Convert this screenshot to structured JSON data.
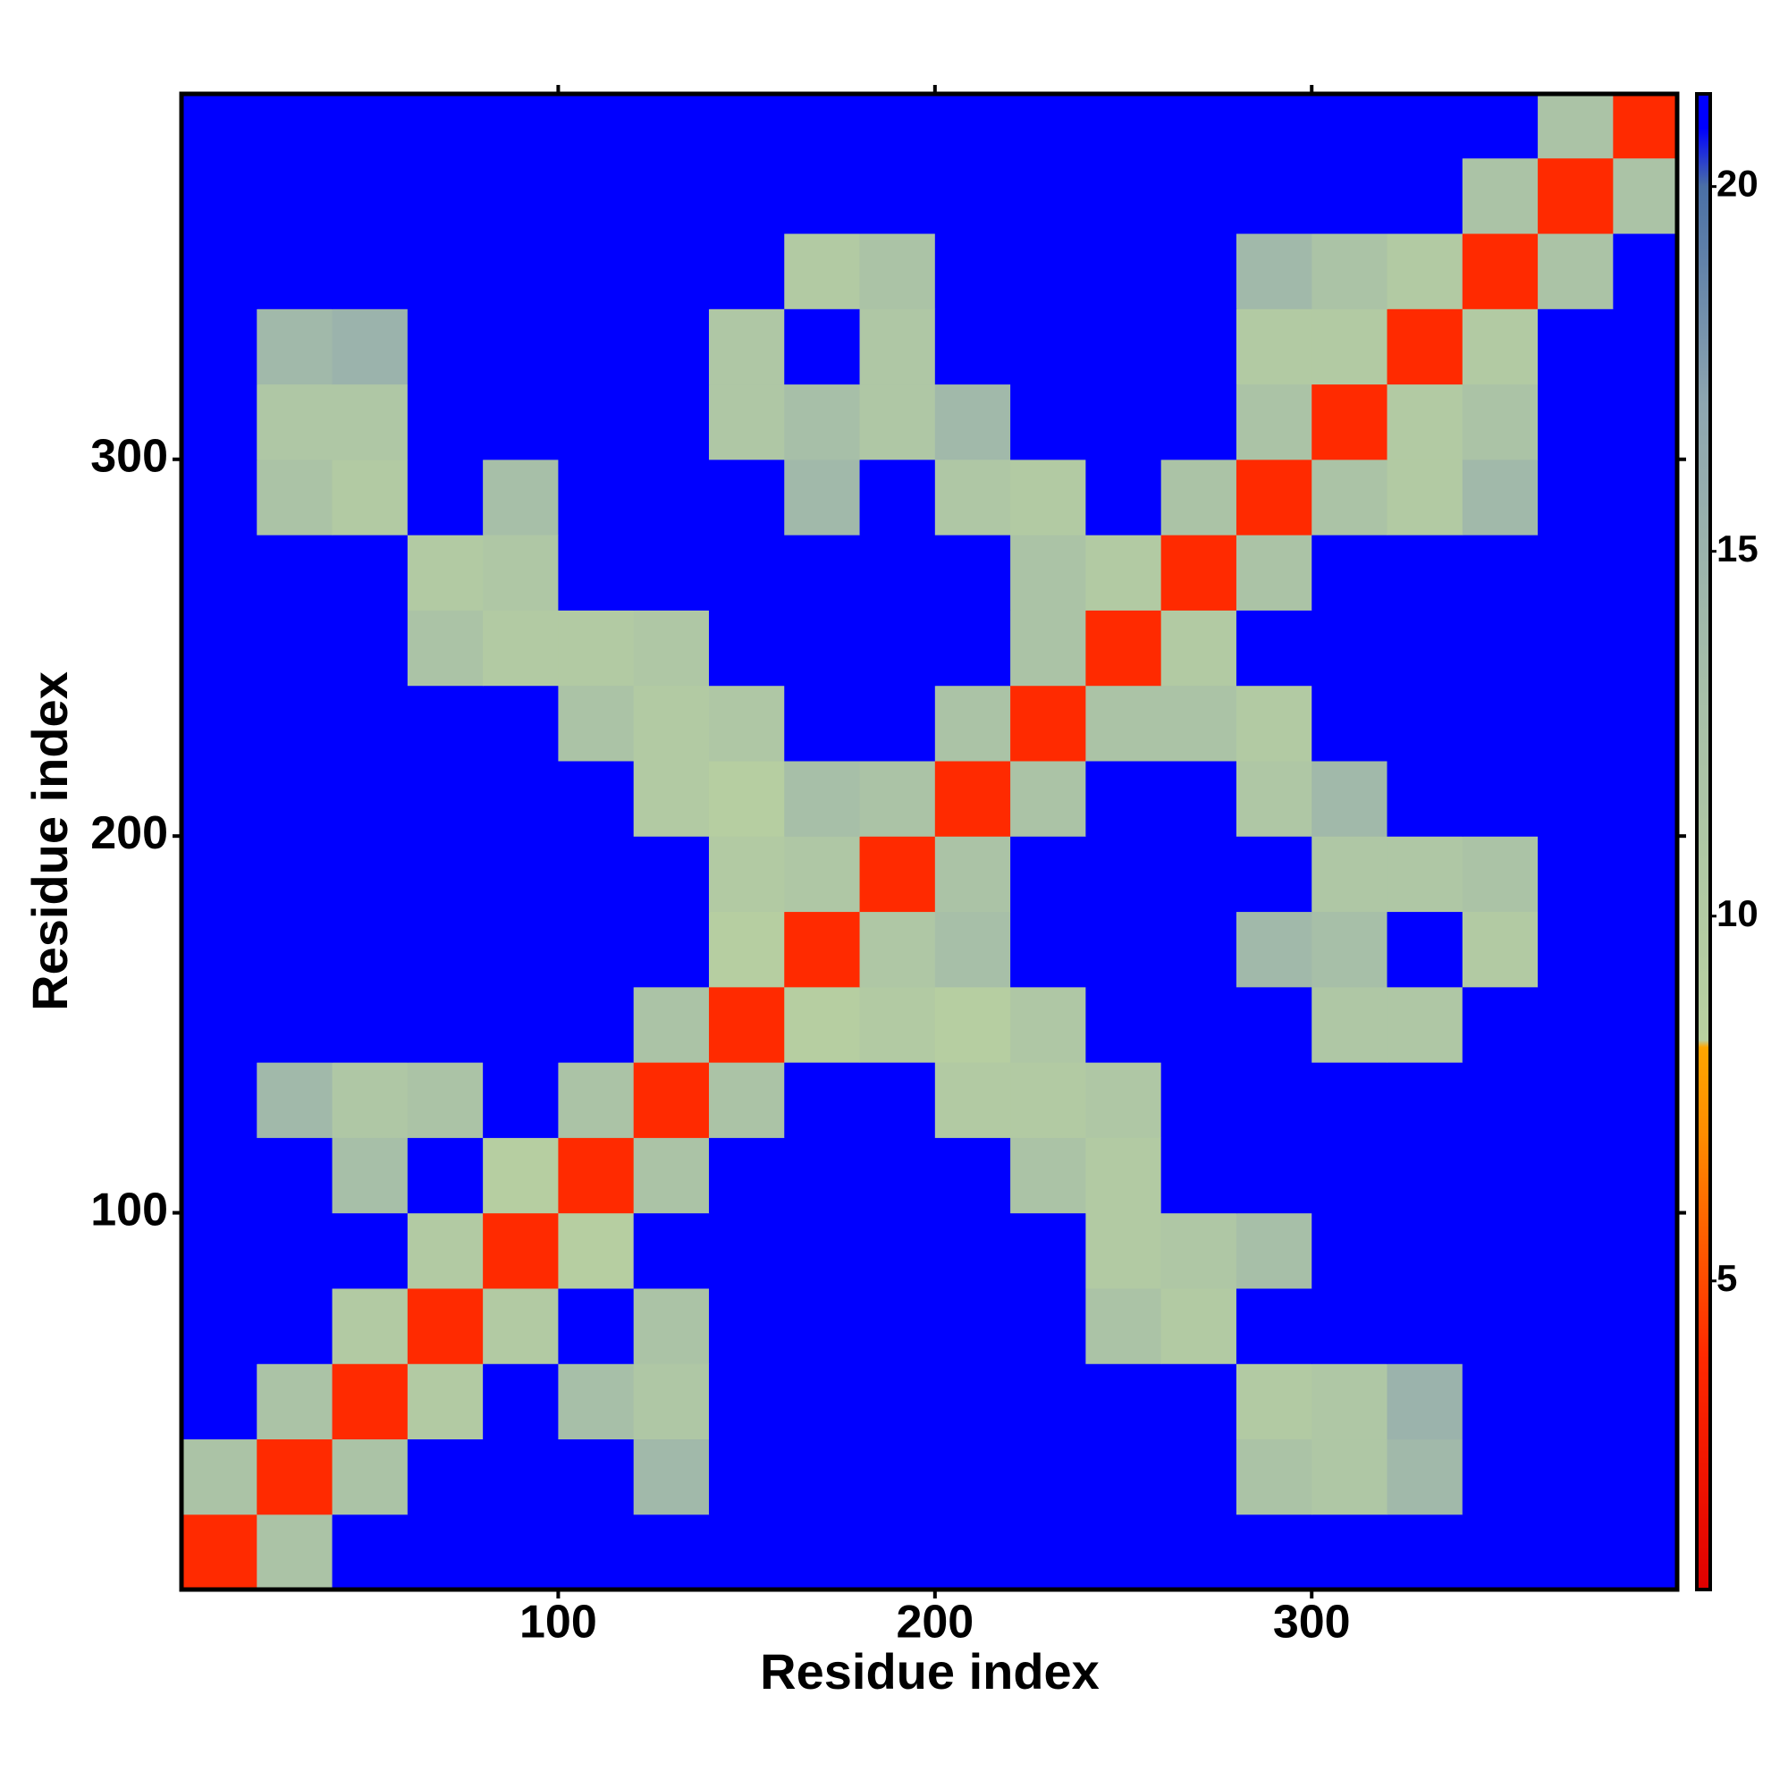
{
  "chart_data": {
    "type": "heatmap",
    "xlabel": "Residue index",
    "ylabel": "Residue index",
    "xlim": [
      0,
      397
    ],
    "ylim": [
      0,
      397
    ],
    "xticks": [
      100,
      200,
      300
    ],
    "yticks": [
      100,
      200,
      300
    ],
    "xbins": [
      0,
      20,
      40,
      60,
      80,
      100,
      120,
      140,
      160,
      180,
      200,
      220,
      240,
      260,
      280,
      300,
      320,
      340,
      360,
      380,
      400
    ],
    "ybins": [
      0,
      20,
      40,
      60,
      80,
      100,
      120,
      140,
      160,
      180,
      200,
      220,
      240,
      260,
      280,
      300,
      320,
      340,
      360,
      380,
      400
    ],
    "zlim": [
      0.77,
      21.27
    ],
    "zticks": [
      5,
      10,
      15,
      20
    ],
    "colorscale": [
      [
        0.77,
        "#e00000"
      ],
      [
        4,
        "#ff2a00"
      ],
      [
        7,
        "#ff8c00"
      ],
      [
        8.2,
        "#ffa500"
      ],
      [
        8.3,
        "#b9d1a0"
      ],
      [
        13,
        "#a7bfa8"
      ],
      [
        17,
        "#8ea6b0"
      ],
      [
        20,
        "#4a6fa5"
      ],
      [
        20.8,
        "#0000ff"
      ],
      [
        21.27,
        "#0000ff"
      ]
    ],
    "z": [
      [
        4,
        12,
        21,
        21,
        21,
        21,
        21,
        21,
        21,
        21,
        21,
        21,
        21,
        21,
        21,
        21,
        21,
        21,
        21,
        21
      ],
      [
        12,
        4,
        12,
        21,
        21,
        21,
        14,
        21,
        21,
        21,
        21,
        21,
        21,
        21,
        12,
        11,
        14,
        21,
        21,
        21
      ],
      [
        21,
        12,
        4,
        10,
        21,
        13,
        11,
        21,
        21,
        21,
        21,
        21,
        21,
        21,
        10,
        11,
        15,
        21,
        21,
        21
      ],
      [
        21,
        21,
        10,
        4,
        10,
        21,
        12,
        21,
        21,
        21,
        21,
        21,
        12,
        10,
        21,
        21,
        21,
        21,
        21,
        21
      ],
      [
        21,
        21,
        21,
        10,
        4,
        9,
        21,
        21,
        21,
        21,
        21,
        21,
        10,
        11,
        13,
        21,
        21,
        21,
        21,
        21
      ],
      [
        21,
        21,
        13,
        21,
        9,
        4,
        12,
        21,
        21,
        21,
        21,
        12,
        10,
        21,
        21,
        21,
        21,
        21,
        21,
        21
      ],
      [
        21,
        14,
        11,
        12,
        21,
        12,
        4,
        12,
        21,
        21,
        10,
        10,
        11,
        21,
        21,
        21,
        21,
        21,
        21,
        21
      ],
      [
        21,
        21,
        21,
        21,
        21,
        21,
        12,
        4,
        9,
        10,
        9,
        11,
        21,
        21,
        21,
        11,
        11,
        21,
        21,
        21
      ],
      [
        21,
        21,
        21,
        21,
        21,
        21,
        21,
        9,
        4,
        11,
        13,
        21,
        21,
        21,
        14,
        13,
        21,
        10,
        21,
        21
      ],
      [
        21,
        21,
        21,
        21,
        21,
        21,
        21,
        10,
        11,
        4,
        12,
        21,
        21,
        21,
        21,
        11,
        11,
        12,
        21,
        21
      ],
      [
        21,
        21,
        21,
        21,
        21,
        21,
        10,
        9,
        13,
        12,
        4,
        12,
        21,
        21,
        11,
        14,
        21,
        21,
        21,
        21
      ],
      [
        21,
        21,
        21,
        21,
        21,
        12,
        10,
        11,
        21,
        21,
        12,
        4,
        12,
        12,
        10,
        21,
        21,
        21,
        21,
        21
      ],
      [
        21,
        21,
        21,
        12,
        10,
        10,
        11,
        21,
        21,
        21,
        21,
        12,
        4,
        10,
        21,
        21,
        21,
        21,
        21,
        21
      ],
      [
        21,
        21,
        21,
        10,
        11,
        21,
        21,
        21,
        21,
        21,
        21,
        12,
        10,
        4,
        12,
        21,
        21,
        21,
        21,
        21
      ],
      [
        21,
        12,
        10,
        21,
        13,
        21,
        21,
        21,
        14,
        21,
        11,
        10,
        21,
        12,
        4,
        12,
        10,
        14,
        21,
        21
      ],
      [
        21,
        11,
        11,
        21,
        21,
        21,
        21,
        11,
        13,
        11,
        14,
        21,
        21,
        21,
        12,
        4,
        10,
        12,
        21,
        21
      ],
      [
        21,
        14,
        15,
        21,
        21,
        21,
        21,
        11,
        21,
        11,
        21,
        21,
        21,
        21,
        10,
        10,
        4,
        10,
        21,
        21
      ],
      [
        21,
        21,
        21,
        21,
        21,
        21,
        21,
        21,
        10,
        12,
        21,
        21,
        21,
        21,
        14,
        12,
        10,
        4,
        12,
        21
      ],
      [
        21,
        21,
        21,
        21,
        21,
        21,
        21,
        21,
        21,
        21,
        21,
        21,
        21,
        21,
        21,
        21,
        21,
        12,
        4,
        12
      ],
      [
        21,
        21,
        21,
        21,
        21,
        21,
        21,
        21,
        21,
        21,
        21,
        21,
        21,
        21,
        21,
        21,
        21,
        21,
        12,
        4
      ]
    ]
  }
}
